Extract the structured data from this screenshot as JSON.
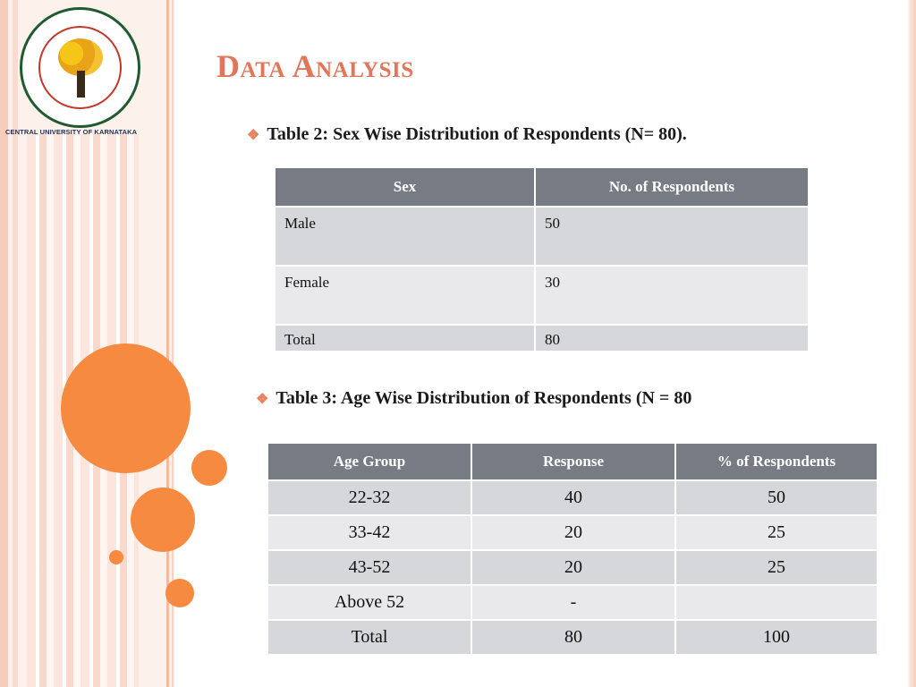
{
  "logo": {
    "alt": "Central University of Karnataka emblem",
    "caption": "CENTRAL UNIVERSITY OF KARNATAKA"
  },
  "slide": {
    "title": "Data Analysis"
  },
  "table2": {
    "caption": "Table 2: Sex Wise Distribution of Respondents (N= 80).",
    "headers": [
      "Sex",
      "No. of Respondents"
    ],
    "rows": [
      [
        "Male",
        "50"
      ],
      [
        "Female",
        "30"
      ],
      [
        "Total",
        "80"
      ]
    ]
  },
  "table3": {
    "caption": "Table 3: Age Wise Distribution of Respondents (N = 80",
    "headers": [
      "Age Group",
      "Response",
      "% of Respondents"
    ],
    "rows": [
      [
        "22-32",
        "40",
        "50"
      ],
      [
        "33-42",
        "20",
        "25"
      ],
      [
        "43-52",
        "20",
        "25"
      ],
      [
        "Above 52",
        "-",
        ""
      ],
      [
        "Total",
        "80",
        "100"
      ]
    ]
  },
  "colors": {
    "accent": "#f58a40",
    "title": "#e0765a",
    "header_bg": "#777b83"
  }
}
